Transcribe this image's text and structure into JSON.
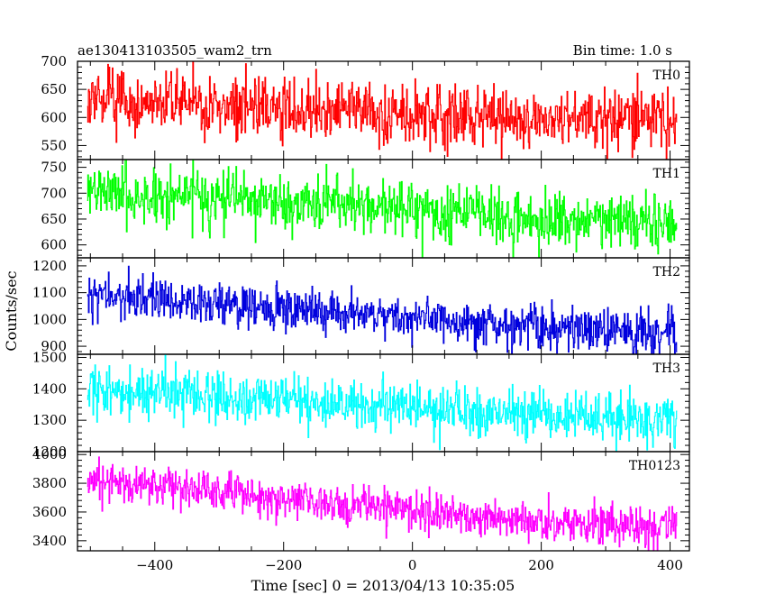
{
  "header": {
    "title": "ae130413103505_wam2_trn",
    "bin_time": "Bin time: 1.0 s"
  },
  "chart_data": {
    "type": "line",
    "title": "ae130413103505_wam2_trn",
    "subtitle": "Bin time: 1.0 s",
    "xlabel": "Time [sec] 0 = 2013/04/13 10:35:05",
    "ylabel": "Counts/sec",
    "xlim": [
      -520,
      430
    ],
    "x_ticks": [
      -400,
      -200,
      0,
      200,
      400
    ],
    "x_tick_labels": [
      "−400",
      "−200",
      "0",
      "200",
      "400"
    ],
    "data_x_range": [
      -505,
      410
    ],
    "bin_seconds": 1.0,
    "grid": false,
    "panels": [
      {
        "label": "TH0",
        "color": "#ff0000",
        "ylim": [
          525,
          700
        ],
        "y_ticks": [
          550,
          600,
          650,
          700
        ],
        "y_tick_labels": [
          "550",
          "600",
          "650",
          "700"
        ],
        "trend": [
          [
            -505,
            635
          ],
          [
            -200,
            615
          ],
          [
            0,
            610
          ],
          [
            200,
            600
          ],
          [
            410,
            598
          ]
        ],
        "noise_amplitude": 26
      },
      {
        "label": "TH1",
        "color": "#00ff00",
        "ylim": [
          575,
          765
        ],
        "y_ticks": [
          600,
          650,
          700,
          750
        ],
        "y_tick_labels": [
          "600",
          "650",
          "700",
          "750"
        ],
        "trend": [
          [
            -505,
            705
          ],
          [
            -200,
            680
          ],
          [
            0,
            668
          ],
          [
            200,
            650
          ],
          [
            410,
            642
          ]
        ],
        "noise_amplitude": 28
      },
      {
        "label": "TH2",
        "color": "#0000dd",
        "ylim": [
          870,
          1230
        ],
        "y_ticks": [
          900,
          1000,
          1100,
          1200
        ],
        "y_tick_labels": [
          "900",
          "1000",
          "1100",
          "1200"
        ],
        "trend": [
          [
            -505,
            1090
          ],
          [
            -200,
            1045
          ],
          [
            0,
            1005
          ],
          [
            200,
            970
          ],
          [
            410,
            950
          ]
        ],
        "noise_amplitude": 42
      },
      {
        "label": "TH3",
        "color": "#00ffff",
        "ylim": [
          1200,
          1510
        ],
        "y_ticks": [
          1200,
          1300,
          1400,
          1500
        ],
        "y_tick_labels": [
          "1200",
          "1300",
          "1400",
          "1500"
        ],
        "trend": [
          [
            -505,
            1400
          ],
          [
            -200,
            1365
          ],
          [
            0,
            1340
          ],
          [
            200,
            1315
          ],
          [
            410,
            1300
          ]
        ],
        "noise_amplitude": 40
      },
      {
        "label": "TH0123",
        "color": "#ff00ff",
        "ylim": [
          3330,
          4020
        ],
        "y_ticks": [
          3400,
          3600,
          3800,
          4000
        ],
        "y_tick_labels": [
          "3400",
          "3600",
          "3800",
          "4000"
        ],
        "trend": [
          [
            -505,
            3840
          ],
          [
            -200,
            3700
          ],
          [
            0,
            3600
          ],
          [
            200,
            3530
          ],
          [
            410,
            3480
          ]
        ],
        "noise_amplitude": 70
      }
    ]
  }
}
